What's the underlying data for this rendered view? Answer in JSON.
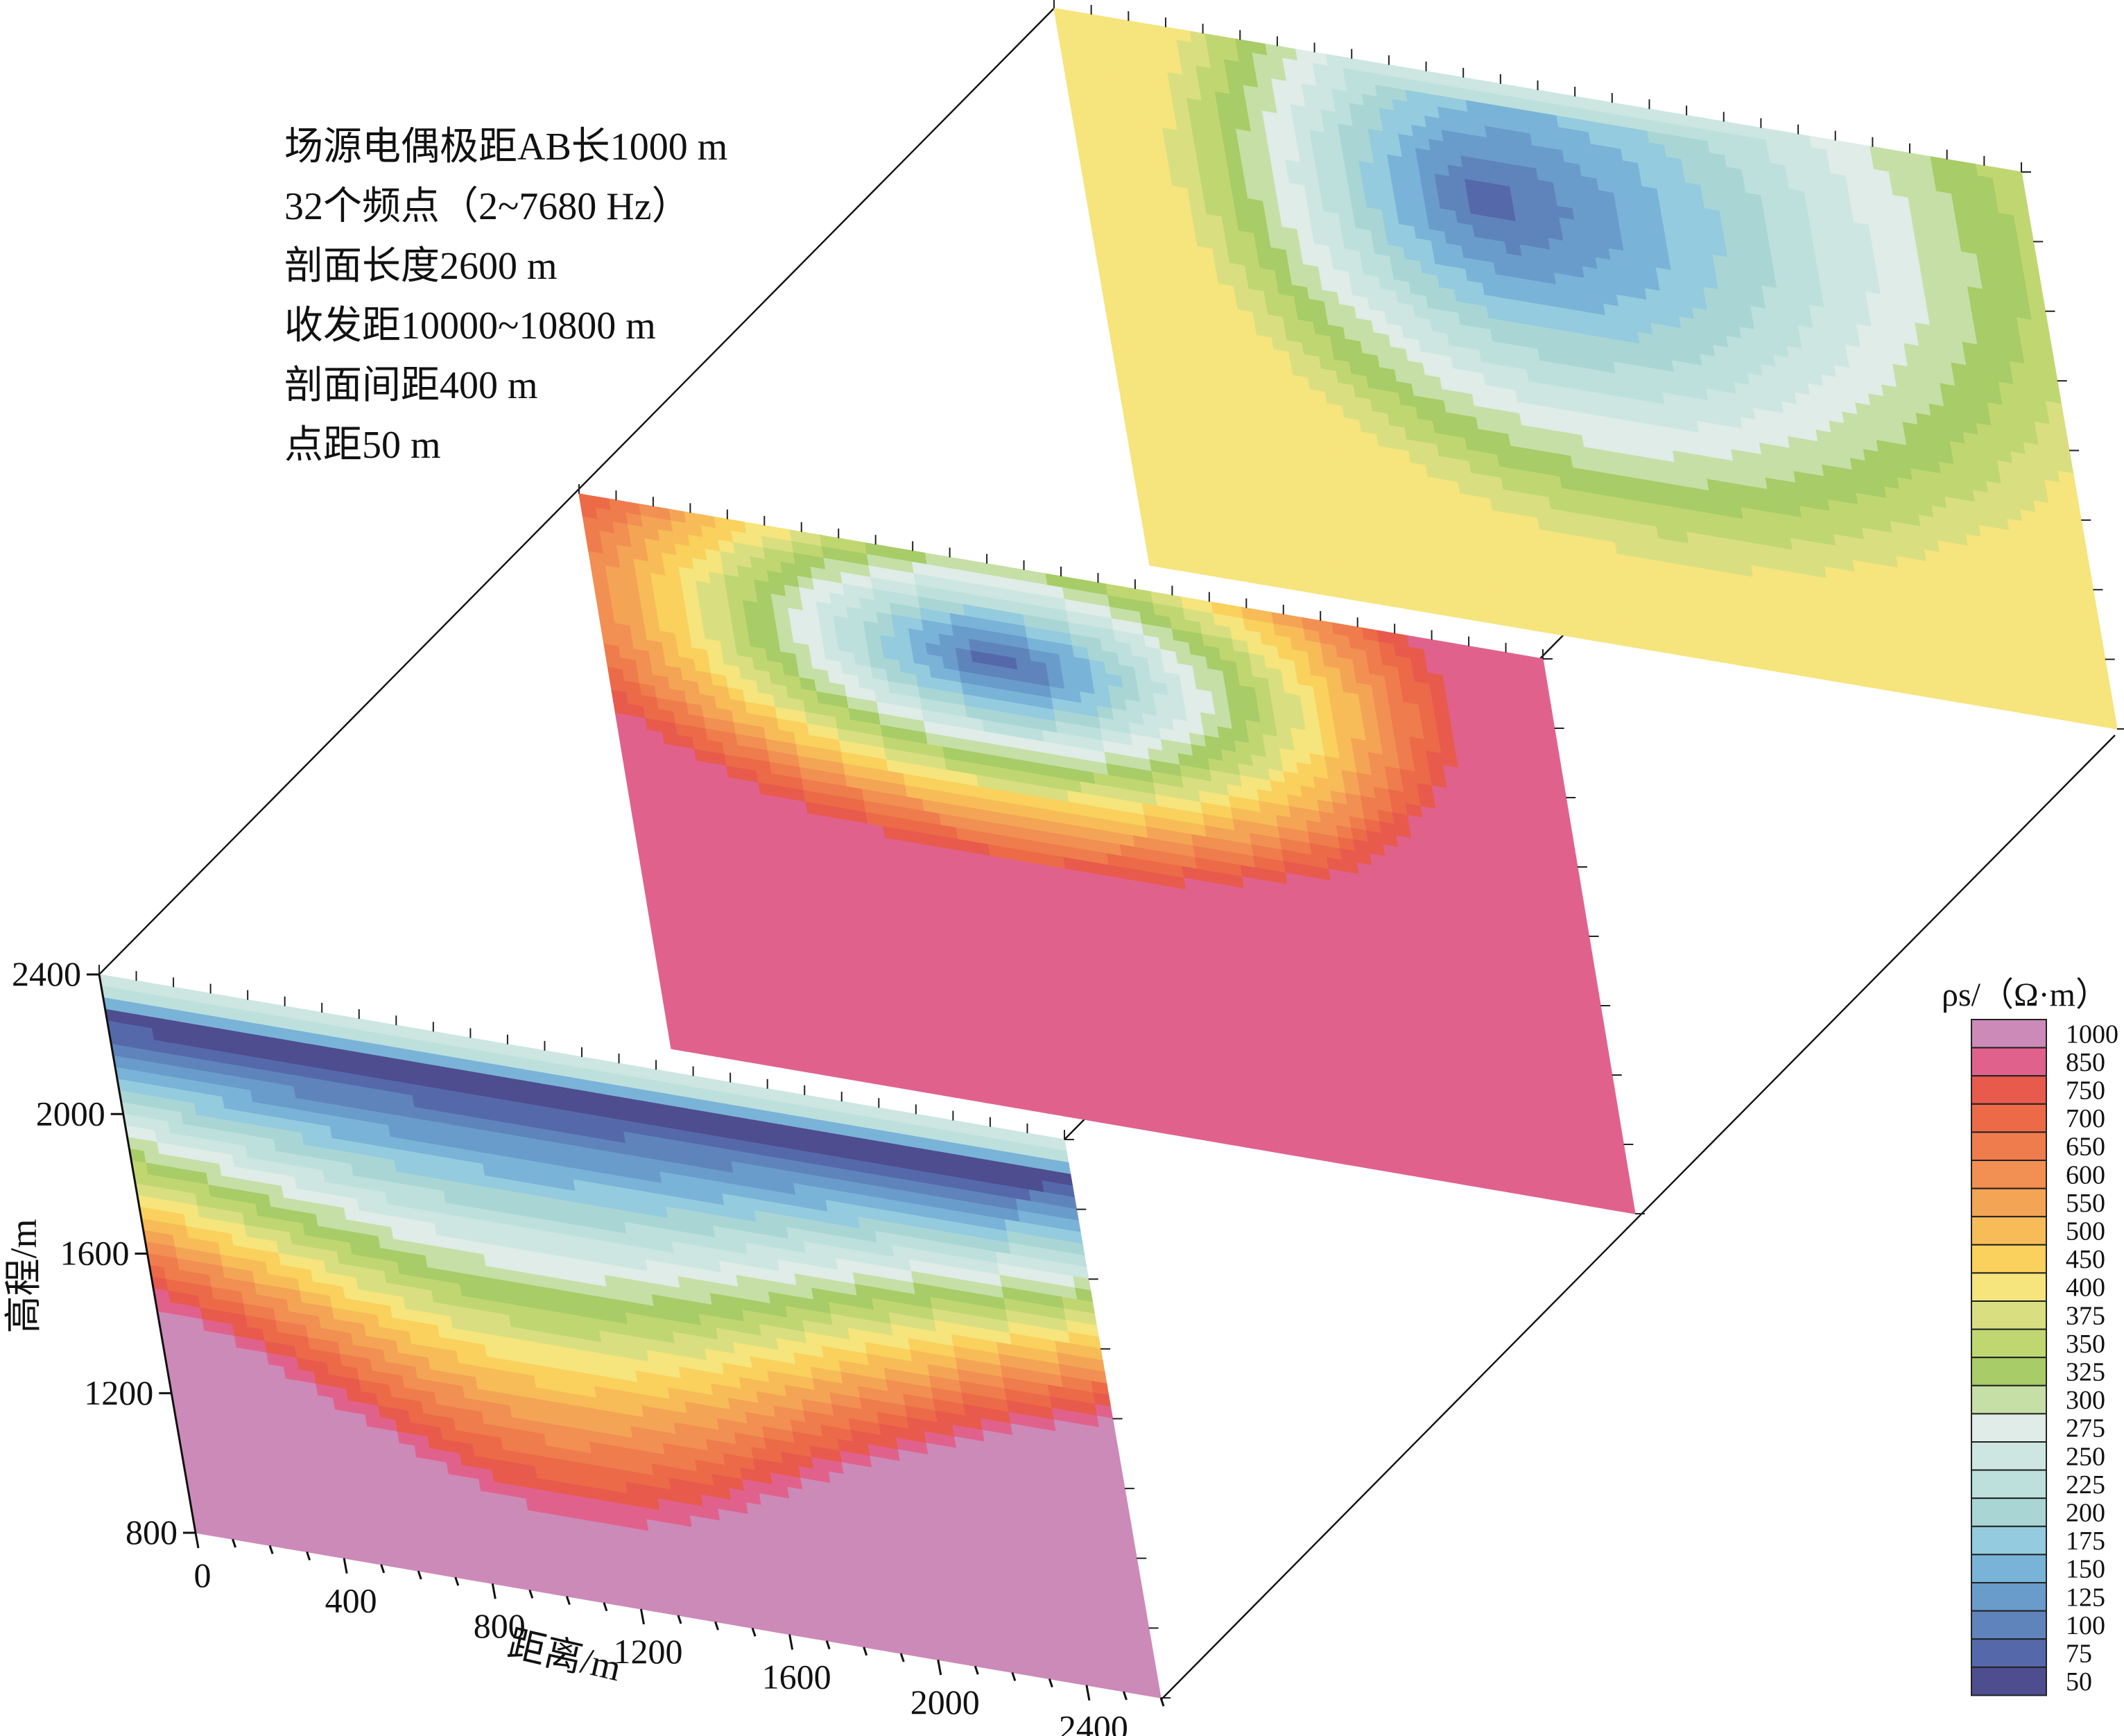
{
  "chart_data": {
    "type": "heatmap",
    "title": "",
    "subtitle": "",
    "description_lines": [
      "场源电偶极距AB长1000 m",
      "32个频点（2~7680 Hz）",
      "剖面长度2600 m",
      "收发距10000~10800 m",
      "剖面间距400 m",
      "点距50 m"
    ],
    "xlabel": "距离/m",
    "ylabel": "高程/m",
    "xlim": [
      0,
      2600
    ],
    "ylim": [
      800,
      2400
    ],
    "x_ticks": [
      "0",
      "400",
      "800",
      "1200",
      "1600",
      "2000",
      "2400"
    ],
    "y_ticks": [
      "800",
      "1200",
      "1600",
      "2000",
      "2400"
    ],
    "profile_count": 3,
    "profile_spacing_m": 400,
    "colorbar": {
      "title": "ρs/（Ω·m）",
      "levels": [
        "1000",
        "850",
        "750",
        "700",
        "650",
        "600",
        "550",
        "500",
        "450",
        "400",
        "375",
        "350",
        "325",
        "300",
        "275",
        "250",
        "225",
        "200",
        "175",
        "150",
        "125",
        "100",
        "75",
        "50"
      ],
      "colors": [
        "#cc8ab8",
        "#e0628c",
        "#e85a4c",
        "#ec6a48",
        "#ef7c4c",
        "#f28f52",
        "#f4a455",
        "#f7bc58",
        "#f9d15c",
        "#f6e47c",
        "#d9df80",
        "#c0d771",
        "#a8cc67",
        "#c6dfa6",
        "#dfece7",
        "#cde6e1",
        "#bde0dc",
        "#a9d6d5",
        "#94cbde",
        "#7ab3d8",
        "#6a9ccb",
        "#5f84bc",
        "#5569aa",
        "#4e4d8f"
      ]
    }
  }
}
